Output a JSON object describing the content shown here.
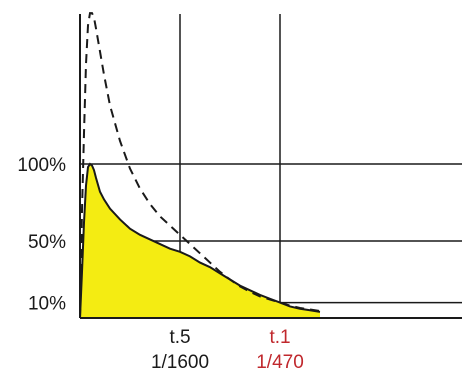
{
  "chart_data": {
    "type": "area",
    "title": "",
    "xlabel": "",
    "ylabel": "",
    "grid": true,
    "x_tick_labels": [
      {
        "x": 50,
        "line1": "t.5",
        "line2": "1/1600",
        "color": "#1a1a1a"
      },
      {
        "x": 100,
        "line1": "t.1",
        "line2": "1/470",
        "color": "#c0282d"
      }
    ],
    "y_tick_labels": [
      {
        "y": 10,
        "label": "10%"
      },
      {
        "y": 50,
        "label": "50%"
      },
      {
        "y": 100,
        "label": "100%"
      }
    ],
    "ylim": [
      0,
      200
    ],
    "series": [
      {
        "style": "filled-solid",
        "fill": "#f4ec12",
        "stroke": "#1a1a1a",
        "points": [
          [
            0,
            0
          ],
          [
            1,
            30
          ],
          [
            2,
            62
          ],
          [
            3,
            86
          ],
          [
            4,
            98
          ],
          [
            5,
            100
          ],
          [
            6,
            99
          ],
          [
            7,
            96
          ],
          [
            8,
            91
          ],
          [
            10,
            82
          ],
          [
            12,
            77
          ],
          [
            15,
            71
          ],
          [
            20,
            64
          ],
          [
            25,
            58
          ],
          [
            30,
            54
          ],
          [
            35,
            51
          ],
          [
            40,
            48
          ],
          [
            45,
            45
          ],
          [
            50,
            43
          ],
          [
            55,
            40
          ],
          [
            60,
            36
          ],
          [
            65,
            33
          ],
          [
            70,
            29
          ],
          [
            75,
            25
          ],
          [
            80,
            21
          ],
          [
            85,
            18
          ],
          [
            90,
            15
          ],
          [
            95,
            12.5
          ],
          [
            100,
            10
          ],
          [
            105,
            7.5
          ],
          [
            110,
            6
          ],
          [
            115,
            5
          ],
          [
            120,
            4
          ]
        ]
      },
      {
        "style": "dashed",
        "stroke": "#1a1a1a",
        "points": [
          [
            0,
            0
          ],
          [
            1,
            70
          ],
          [
            2,
            120
          ],
          [
            3,
            165
          ],
          [
            4,
            190
          ],
          [
            5,
            198
          ],
          [
            6,
            198
          ],
          [
            7,
            195
          ],
          [
            8,
            188
          ],
          [
            10,
            173
          ],
          [
            12,
            158
          ],
          [
            15,
            138
          ],
          [
            20,
            115
          ],
          [
            25,
            97
          ],
          [
            30,
            84
          ],
          [
            35,
            74
          ],
          [
            40,
            66
          ],
          [
            45,
            60
          ],
          [
            50,
            54
          ],
          [
            55,
            48
          ],
          [
            60,
            42
          ],
          [
            65,
            36
          ],
          [
            70,
            30
          ],
          [
            75,
            25
          ],
          [
            80,
            20.5
          ],
          [
            85,
            17
          ],
          [
            90,
            14
          ],
          [
            95,
            12
          ],
          [
            100,
            10
          ],
          [
            105,
            8
          ],
          [
            110,
            6.5
          ],
          [
            115,
            5.5
          ],
          [
            120,
            4.5
          ]
        ]
      }
    ]
  }
}
